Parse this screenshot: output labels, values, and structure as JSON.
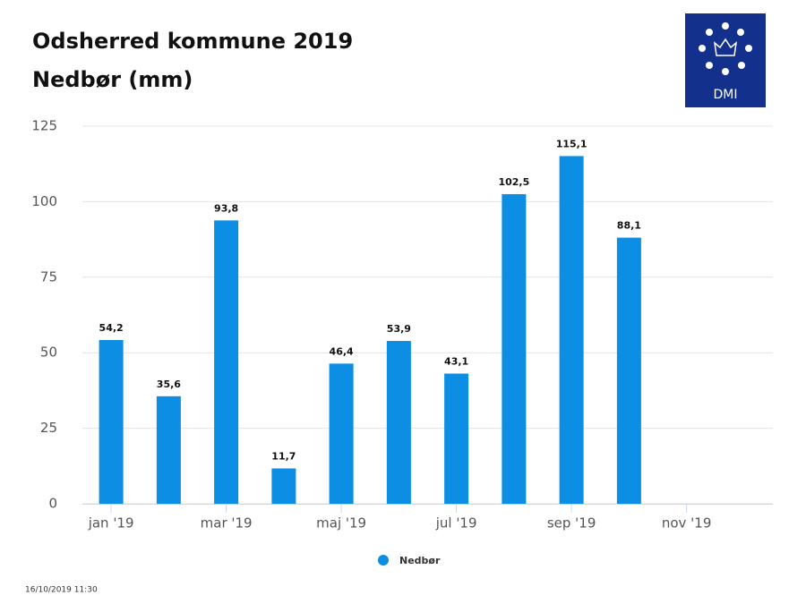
{
  "chart_data": {
    "type": "bar",
    "title": "Odsherred kommune 2019",
    "subtitle": "Nedbør (mm)",
    "logo": "DMI",
    "footer": "16/10/2019 11:30",
    "categories": [
      "jan '19",
      null,
      "mar '19",
      null,
      "maj '19",
      null,
      "jul '19",
      null,
      "sep '19",
      null,
      "nov '19",
      null
    ],
    "series": [
      {
        "name": "Nedbør",
        "color": "#0b8ee3",
        "values": [
          54.2,
          35.6,
          93.8,
          11.7,
          46.4,
          53.9,
          43.1,
          102.5,
          115.1,
          88.1,
          null,
          null
        ],
        "value_labels": [
          "54,2",
          "35,6",
          "93,8",
          "11,7",
          "46,4",
          "53,9",
          "43,1",
          "102,5",
          "115,1",
          "88,1",
          null,
          null
        ]
      }
    ],
    "ylim": [
      0,
      125
    ],
    "yticks": [
      0,
      25,
      50,
      75,
      100,
      125
    ],
    "grid": true
  }
}
